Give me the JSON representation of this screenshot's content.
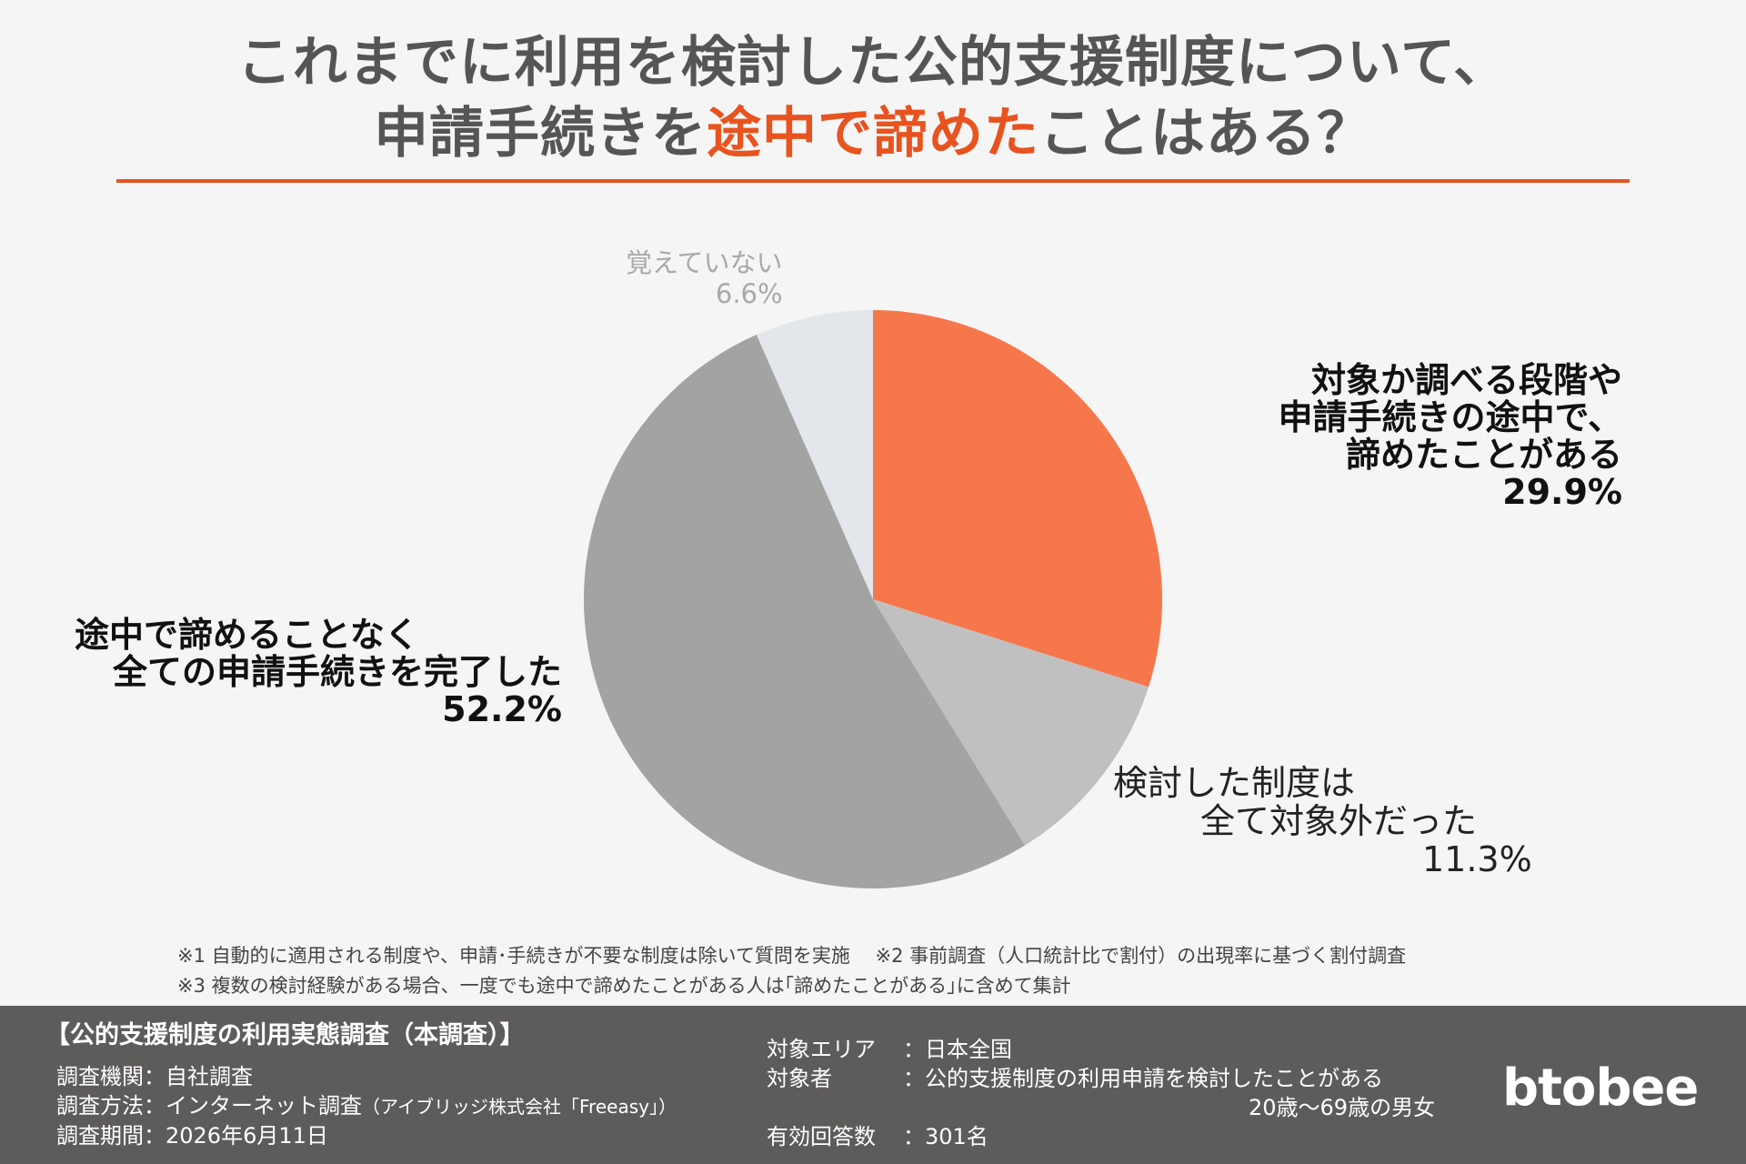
{
  "header": {
    "title_line1": "これまでに利用を検討した公的支援制度について、",
    "title_line2_pre": "申請手続きを",
    "title_line2_highlight": "途中で諦めた",
    "title_line2_post": "ことはある？",
    "accent_color": "#e8531f"
  },
  "chart_data": {
    "type": "pie",
    "start_angle_deg": 0,
    "direction": "clockwise",
    "slices": [
      {
        "lines": [
          "対象か調べる段階や",
          "申請手続きの途中で、",
          "諦めたことがある"
        ],
        "value": 29.9,
        "value_label": "29.9%",
        "color": "#f7774d"
      },
      {
        "lines": [
          "検討した制度は",
          "全て対象外だった"
        ],
        "value": 11.3,
        "value_label": "11.3%",
        "color": "#c0c0c0"
      },
      {
        "lines": [
          "途中で諦めることなく",
          "全ての申請手続きを完了した"
        ],
        "value": 52.2,
        "value_label": "52.2%",
        "color": "#a3a3a3"
      },
      {
        "lines": [
          "覚えていない"
        ],
        "value": 6.6,
        "value_label": "6.6%",
        "color": "#e3e6ea"
      }
    ]
  },
  "notes": [
    "※1 自動的に適用される制度や、申請･手続きが不要な制度は除いて質問を実施　 ※2 事前調査（人口統計比で割付）の出現率に基づく割付調査",
    "※3 複数の検討経験がある場合、一度でも途中で諦めたことがある人は｢諦めたことがある｣に含めて集計"
  ],
  "footer": {
    "survey_title": "【公的支援制度の利用実態調査（本調査）】",
    "left": [
      {
        "text": "調査機関：自社調査",
        "suffix": ""
      },
      {
        "text": "調査方法：インターネット調査",
        "suffix": "（アイブリッジ株式会社「Freeasy」）"
      },
      {
        "text": "調査期間：2026年6月11日",
        "suffix": ""
      }
    ],
    "right": {
      "area_key": "対象エリア",
      "area_val": "：日本全国",
      "target_key": "対象者",
      "target_val": "：公的支援制度の利用申請を検討したことがある",
      "target_val2": "20歳〜69歳の男女",
      "count_key": "有効回答数",
      "count_val": "：301名"
    },
    "logo": "btobee"
  }
}
